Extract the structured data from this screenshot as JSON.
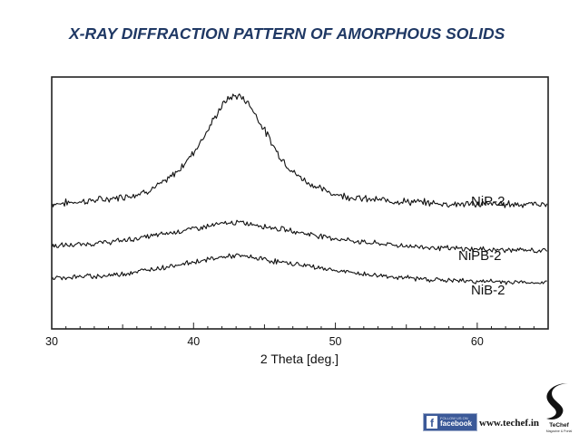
{
  "page": {
    "title": "X-RAY DIFFRACTION PATTERN OF AMORPHOUS SOLIDS"
  },
  "chart_data": {
    "type": "line",
    "title": "X-RAY DIFFRACTION PATTERN OF AMORPHOUS SOLIDS",
    "xlabel": "2 Theta [deg.]",
    "ylabel": "",
    "xlim": [
      30,
      65
    ],
    "ylim": [
      0,
      100
    ],
    "x_ticks": [
      30,
      40,
      50,
      60
    ],
    "grid": false,
    "legend": "inline labels at right",
    "series": [
      {
        "name": "NiP-2",
        "x": [
          30,
          32,
          34,
          36,
          37,
          38,
          39,
          40,
          41,
          42,
          42.5,
          43,
          43.5,
          44,
          45,
          46,
          47,
          48,
          49,
          50,
          52,
          55,
          58,
          61,
          65
        ],
        "values": [
          40,
          41,
          42,
          44,
          46,
          49,
          54,
          61,
          70,
          80,
          83,
          84,
          83,
          80,
          70,
          60,
          53,
          49,
          46,
          44,
          42,
          41,
          40,
          40,
          40
        ]
      },
      {
        "name": "NiPB-2",
        "x": [
          30,
          32,
          34,
          36,
          38,
          40,
          41,
          42,
          43,
          44,
          45,
          46,
          48,
          50,
          52,
          55,
          58,
          61,
          65
        ],
        "values": [
          23,
          23.5,
          24.5,
          26,
          28,
          30,
          31,
          32,
          32.5,
          32,
          31,
          30,
          28,
          26,
          24.5,
          23,
          22,
          21.5,
          21
        ]
      },
      {
        "name": "NiB-2",
        "x": [
          30,
          32,
          34,
          36,
          38,
          40,
          41,
          42,
          43,
          44,
          45,
          46,
          48,
          50,
          52,
          55,
          58,
          61,
          65
        ],
        "values": [
          10,
          10.5,
          11,
          12.5,
          14.5,
          16.5,
          17.5,
          18.5,
          19,
          18.5,
          17.5,
          16.5,
          15,
          13,
          11.5,
          10,
          9,
          8.5,
          8
        ]
      }
    ],
    "x_raw": "x points are the digitized curve; drawn with added noise to mimic measured XRD traces"
  },
  "footer": {
    "facebook_small": "FOLLOW US ON",
    "facebook_big": "facebook",
    "facebook_letter": "f",
    "url": "www.techef.in",
    "logo_text": "TeChef",
    "logo_sub": "Magazine & Portal"
  },
  "colors": {
    "title": "#1f3864",
    "facebook": "#3b5998",
    "trace": "#111111"
  }
}
